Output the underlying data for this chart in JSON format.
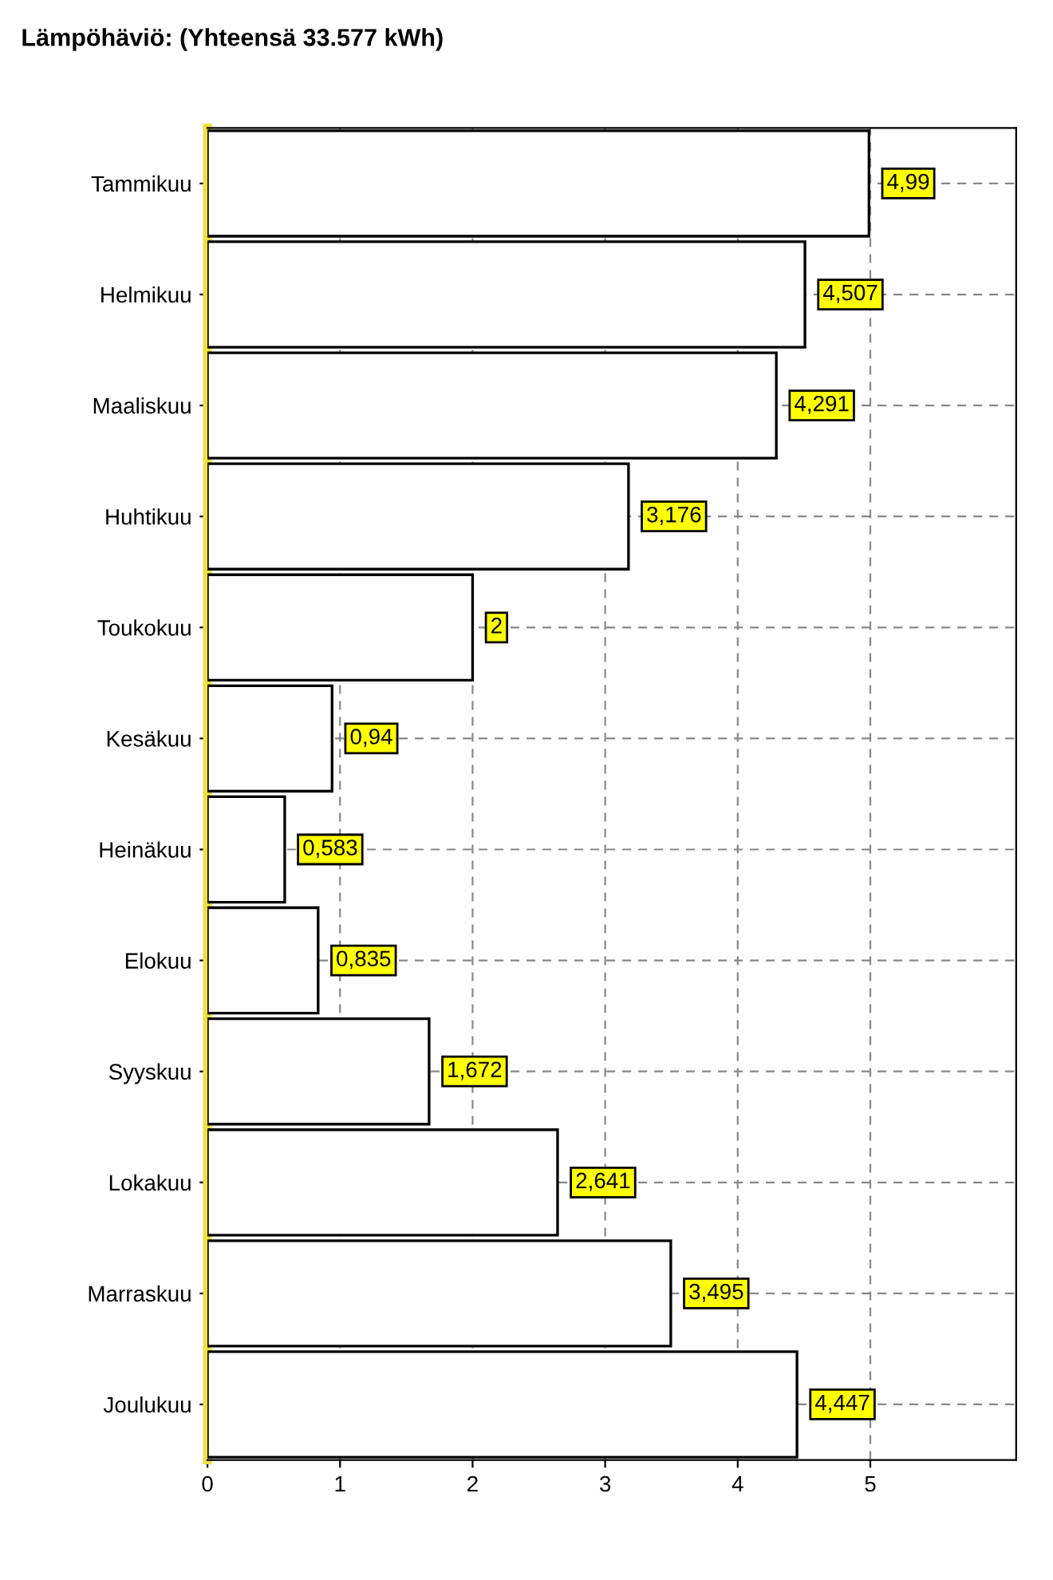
{
  "chart_data": {
    "type": "bar",
    "orientation": "horizontal",
    "title": "Lämpöhäviö: (Yhteensä 33.577 kWh)",
    "categories": [
      "Tammikuu",
      "Helmikuu",
      "Maaliskuu",
      "Huhtikuu",
      "Toukokuu",
      "Kesäkuu",
      "Heinäkuu",
      "Elokuu",
      "Syyskuu",
      "Lokakuu",
      "Marraskuu",
      "Joulukuu"
    ],
    "values": [
      4.99,
      4.507,
      4.291,
      3.176,
      2,
      0.94,
      0.583,
      0.835,
      1.672,
      2.641,
      3.495,
      4.447
    ],
    "value_labels": [
      "4,99",
      "4,507",
      "4,291",
      "3,176",
      "2",
      "0,94",
      "0,583",
      "0,835",
      "1,672",
      "2,641",
      "3,495",
      "4,447"
    ],
    "color": "#ffffff",
    "xlim": [
      0,
      6.1
    ],
    "xticks": [
      0,
      1,
      2,
      3,
      4,
      5
    ],
    "grid": true
  }
}
